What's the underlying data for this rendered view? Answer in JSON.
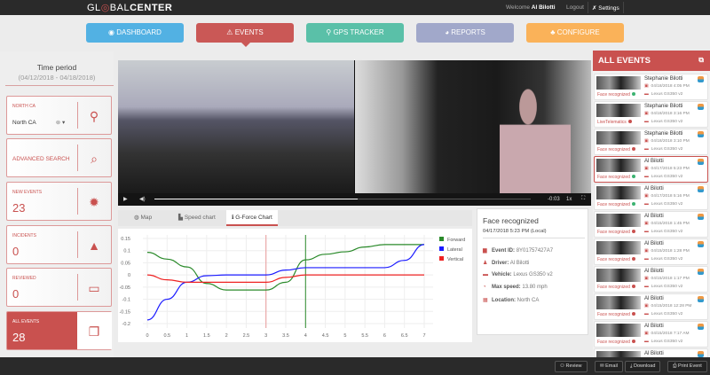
{
  "header": {
    "logo": "GLOBALCENTER",
    "welcome": "Welcome",
    "user": "Al Bilotti",
    "logout": "Logout",
    "settings": "Settings"
  },
  "nav": [
    {
      "label": "DASHBOARD",
      "color": "#4aaee3",
      "icon": "dashboard-icon"
    },
    {
      "label": "EVENTS",
      "color": "#c9514f",
      "icon": "warning-icon"
    },
    {
      "label": "GPS TRACKER",
      "color": "#53bea5",
      "icon": "map-pin-icon"
    },
    {
      "label": "REPORTS",
      "color": "#9da5c9",
      "icon": "pie-chart-icon"
    },
    {
      "label": "CONFIGURE",
      "color": "#fbaf52",
      "icon": "sitemap-icon"
    }
  ],
  "sidebar": {
    "time_period_title": "Time period",
    "time_period_range": "(04/12/2018 - 04/18/2018)",
    "region": {
      "label": "NORTH CA",
      "value": "North CA"
    },
    "advanced_search": "ADVANCED SEARCH",
    "new_events": {
      "label": "NEW EVENTS",
      "count": "23"
    },
    "incidents": {
      "label": "INCIDENTS",
      "count": "0"
    },
    "reviewed": {
      "label": "REVIEWED",
      "count": "0"
    },
    "all_events": {
      "label": "ALL EVENTS",
      "count": "28"
    }
  },
  "video": {
    "time_remaining": "-0:03",
    "speed": "1x",
    "progress": 0.54
  },
  "tabs": [
    {
      "label": "Map"
    },
    {
      "label": "Speed chart"
    },
    {
      "label": "G-Force Chart",
      "active": true
    }
  ],
  "chart_data": {
    "type": "line",
    "xlim": [
      0,
      7
    ],
    "ylim": [
      -0.2,
      0.15
    ],
    "xticks": [
      "0",
      "0.5",
      "1",
      "1.5",
      "2",
      "2.5",
      "3",
      "3.5",
      "4",
      "4.5",
      "5",
      "5.5",
      "6",
      "6.5",
      "7"
    ],
    "yticks": [
      "0.15",
      "0.1",
      "0.05",
      "0",
      "-0.05",
      "-0.1",
      "-0.15",
      "-0.2"
    ],
    "grid": true,
    "legend": "right",
    "markers": [
      {
        "x": 3,
        "color": "#e99a9a"
      },
      {
        "x": 4,
        "color": "#2a8a2a"
      }
    ],
    "series": [
      {
        "name": "Forward",
        "color": "#2a8a2a",
        "x": [
          0,
          0.5,
          1,
          1.5,
          2,
          2.5,
          3,
          3.5,
          4,
          4.5,
          5,
          5.5,
          6,
          6.5,
          7
        ],
        "y": [
          0.093,
          0.065,
          0.033,
          -0.035,
          -0.062,
          -0.062,
          -0.062,
          -0.03,
          0.062,
          0.085,
          0.095,
          0.115,
          0.125,
          0.125,
          0.125
        ]
      },
      {
        "name": "Lateral",
        "color": "#1a1aff",
        "x": [
          0,
          0.5,
          1,
          1.5,
          2,
          2.5,
          3,
          3.5,
          4,
          4.5,
          5,
          5.5,
          6,
          6.5,
          7
        ],
        "y": [
          -0.185,
          -0.1,
          -0.03,
          -0.003,
          0,
          0,
          0,
          0.02,
          0.03,
          0.03,
          0.03,
          0.03,
          0.03,
          0.06,
          0.125
        ]
      },
      {
        "name": "Vertical",
        "color": "#ee2222",
        "x": [
          0,
          0.5,
          1,
          1.5,
          2,
          2.5,
          3,
          3.5,
          4,
          4.5,
          5,
          5.5,
          6,
          6.5,
          7
        ],
        "y": [
          0,
          -0.02,
          -0.03,
          -0.03,
          -0.03,
          -0.03,
          -0.03,
          -0.01,
          0,
          0,
          0,
          0,
          0,
          0,
          0
        ]
      }
    ]
  },
  "detail": {
    "title": "Face recognized",
    "date": "04/17/2018 5:23 PM (Local)",
    "rows": [
      {
        "label": "Event ID:",
        "value": "8Y01757427A7"
      },
      {
        "label": "Driver:",
        "value": "Al Bilotti"
      },
      {
        "label": "Vehicle:",
        "value": "Lexus GS350 v2"
      },
      {
        "label": "Max speed:",
        "value": "13.80 mph"
      },
      {
        "label": "Location:",
        "value": "North CA"
      }
    ]
  },
  "events_panel": {
    "title": "ALL EVENTS",
    "items": [
      {
        "name": "Stephanie Bilotti",
        "date": "04/18/2018 4:05 PM",
        "vehicle": "Lexus GS350 v2",
        "type": "Face recognized",
        "status": "#3cb371"
      },
      {
        "name": "Stephanie Bilotti",
        "date": "04/18/2018 3:16 PM",
        "vehicle": "Lexus GS350 v2",
        "type": "LiveTelematics",
        "status": "#c9514f"
      },
      {
        "name": "Stephanie Bilotti",
        "date": "04/18/2018 3:10 PM",
        "vehicle": "Lexus GS350 v2",
        "type": "Face recognized",
        "status": "#c9514f"
      },
      {
        "name": "Al Bilotti",
        "date": "04/17/2018 5:23 PM",
        "vehicle": "Lexus GS350 v2",
        "type": "Face recognized",
        "status": "#3cb371",
        "selected": true
      },
      {
        "name": "Al Bilotti",
        "date": "04/17/2018 5:16 PM",
        "vehicle": "Lexus GS350 v2",
        "type": "Face recognized",
        "status": "#3cb371"
      },
      {
        "name": "Al Bilotti",
        "date": "04/15/2018 1:45 PM",
        "vehicle": "Lexus GS350 v2",
        "type": "Face recognized",
        "status": "#c9514f"
      },
      {
        "name": "Al Bilotti",
        "date": "04/15/2018 1:28 PM",
        "vehicle": "Lexus GS350 v2",
        "type": "Face recognized",
        "status": "#c9514f"
      },
      {
        "name": "Al Bilotti",
        "date": "04/15/2018 1:17 PM",
        "vehicle": "Lexus GS350 v2",
        "type": "Face recognized",
        "status": "#c9514f"
      },
      {
        "name": "Al Bilotti",
        "date": "04/15/2018 12:28 PM",
        "vehicle": "Lexus GS350 v2",
        "type": "Face recognized",
        "status": "#c9514f"
      },
      {
        "name": "Al Bilotti",
        "date": "04/15/2018 7:17 AM",
        "vehicle": "Lexus GS350 v2",
        "type": "Face recognized",
        "status": "#c9514f"
      },
      {
        "name": "Al Bilotti",
        "date": "",
        "vehicle": "",
        "type": "",
        "status": ""
      }
    ]
  },
  "footer": {
    "review": "Review",
    "email": "Email",
    "download": "Download",
    "print": "Print Event"
  }
}
